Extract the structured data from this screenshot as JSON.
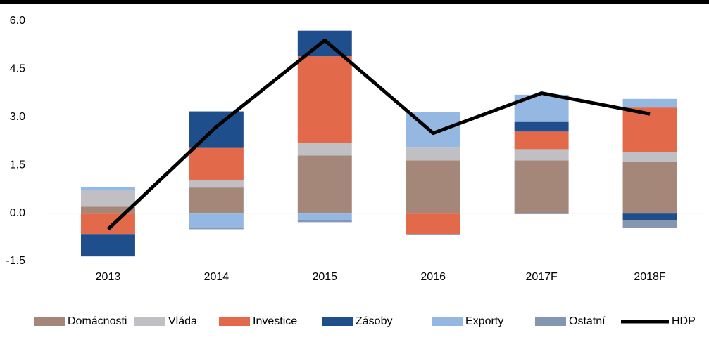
{
  "chart_data": {
    "type": "bar",
    "categories": [
      "2013",
      "2014",
      "2015",
      "2016",
      "2017F",
      "2018F"
    ],
    "stacked": true,
    "series": [
      {
        "name": "Domácnosti",
        "color": "#a5877a",
        "values": [
          0.2,
          0.8,
          1.8,
          1.65,
          1.65,
          1.6
        ]
      },
      {
        "name": "Vláda",
        "color": "#bfbfc4",
        "values": [
          0.5,
          0.22,
          0.4,
          0.4,
          0.35,
          0.3
        ]
      },
      {
        "name": "Investice",
        "color": "#e2694a",
        "values": [
          -0.65,
          1.02,
          2.7,
          -0.65,
          0.55,
          1.4
        ]
      },
      {
        "name": "Zásoby",
        "color": "#1f4e8c",
        "values": [
          -0.7,
          1.14,
          0.8,
          null,
          0.3,
          -0.22
        ]
      },
      {
        "name": "Exporty",
        "color": "#95b8e3",
        "values": [
          0.12,
          -0.45,
          -0.22,
          1.1,
          0.85,
          0.27
        ]
      },
      {
        "name": "Ostatní",
        "color": "#8497b0",
        "values": [
          null,
          -0.05,
          -0.06,
          -0.03,
          -0.03,
          -0.25
        ]
      },
      {
        "name": "HDP",
        "color": "#000000",
        "type": "line",
        "values": [
          -0.5,
          2.7,
          5.4,
          2.5,
          3.75,
          3.1
        ]
      }
    ],
    "ylim": [
      -1.5,
      6.0
    ],
    "yticks": [
      {
        "value": -1.5,
        "label": "-1.5"
      },
      {
        "value": 0,
        "label": "0.0"
      },
      {
        "value": 1.5,
        "label": "1.5"
      },
      {
        "value": 3,
        "label": "3.0"
      },
      {
        "value": 4.5,
        "label": "4.5"
      },
      {
        "value": 6,
        "label": "6.0"
      }
    ],
    "legend": "bottom"
  }
}
